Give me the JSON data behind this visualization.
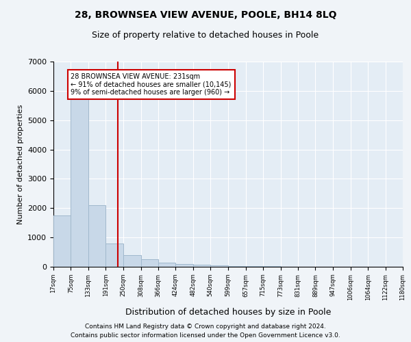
{
  "title1": "28, BROWNSEA VIEW AVENUE, POOLE, BH14 8LQ",
  "title2": "Size of property relative to detached houses in Poole",
  "xlabel": "Distribution of detached houses by size in Poole",
  "ylabel": "Number of detached properties",
  "bar_color": "#c8d8e8",
  "bar_edge_color": "#a0b8cc",
  "vline_x": 231,
  "vline_color": "#cc0000",
  "annotation_lines": [
    "28 BROWNSEA VIEW AVENUE: 231sqm",
    "← 91% of detached houses are smaller (10,145)",
    "9% of semi-detached houses are larger (960) →"
  ],
  "bin_edges": [
    17,
    75,
    133,
    191,
    250,
    308,
    366,
    424,
    482,
    540,
    599,
    657,
    715,
    773,
    831,
    889,
    947,
    1006,
    1064,
    1122,
    1180
  ],
  "bin_counts": [
    1750,
    5900,
    2100,
    800,
    400,
    250,
    150,
    100,
    60,
    50,
    30,
    20,
    15,
    10,
    8,
    5,
    4,
    3,
    2,
    2
  ],
  "ylim": [
    0,
    7000
  ],
  "yticks": [
    0,
    1000,
    2000,
    3000,
    4000,
    5000,
    6000,
    7000
  ],
  "footnote1": "Contains HM Land Registry data © Crown copyright and database right 2024.",
  "footnote2": "Contains public sector information licensed under the Open Government Licence v3.0.",
  "bg_color": "#f0f4f8",
  "plot_bg_color": "#e4edf5"
}
